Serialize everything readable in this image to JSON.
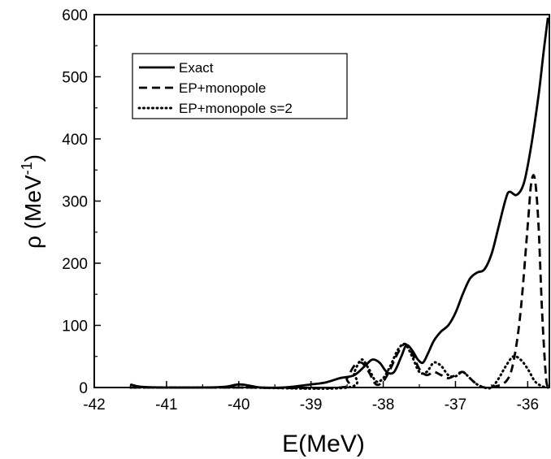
{
  "chart_data": {
    "type": "line",
    "title": "",
    "xlabel": "E(MeV)",
    "ylabel": "ρ (MeV",
    "ylabel_sup": "-1",
    "ylabel_close": ")",
    "xlim": [
      -42,
      -35.7
    ],
    "ylim": [
      0,
      600
    ],
    "x_ticks": [
      "-42",
      "-41",
      "-40",
      "-39",
      "-38",
      "-37",
      "-36"
    ],
    "y_ticks": [
      "0",
      "100",
      "200",
      "300",
      "400",
      "500",
      "600"
    ],
    "grid": false,
    "legend_position": "top-left",
    "series": [
      {
        "name": "Exact",
        "style": "solid",
        "points": [
          [
            -41.5,
            5
          ],
          [
            -41.35,
            1
          ],
          [
            -41.0,
            0
          ],
          [
            -40.5,
            0
          ],
          [
            -40.2,
            1
          ],
          [
            -40.0,
            5
          ],
          [
            -39.85,
            3
          ],
          [
            -39.7,
            0
          ],
          [
            -39.4,
            0
          ],
          [
            -39.2,
            2
          ],
          [
            -39.0,
            5
          ],
          [
            -38.8,
            8
          ],
          [
            -38.6,
            15
          ],
          [
            -38.4,
            20
          ],
          [
            -38.25,
            35
          ],
          [
            -38.15,
            45
          ],
          [
            -38.05,
            40
          ],
          [
            -37.95,
            25
          ],
          [
            -37.85,
            25
          ],
          [
            -37.75,
            50
          ],
          [
            -37.68,
            68
          ],
          [
            -37.6,
            60
          ],
          [
            -37.52,
            45
          ],
          [
            -37.45,
            40
          ],
          [
            -37.38,
            55
          ],
          [
            -37.3,
            75
          ],
          [
            -37.2,
            90
          ],
          [
            -37.1,
            100
          ],
          [
            -37.0,
            120
          ],
          [
            -36.9,
            150
          ],
          [
            -36.8,
            175
          ],
          [
            -36.7,
            185
          ],
          [
            -36.6,
            190
          ],
          [
            -36.5,
            215
          ],
          [
            -36.4,
            260
          ],
          [
            -36.3,
            305
          ],
          [
            -36.25,
            315
          ],
          [
            -36.15,
            310
          ],
          [
            -36.05,
            330
          ],
          [
            -35.95,
            390
          ],
          [
            -35.85,
            470
          ],
          [
            -35.78,
            540
          ],
          [
            -35.72,
            595
          ]
        ]
      },
      {
        "name": "EP+monopole",
        "style": "dashed",
        "points": [
          [
            -41.5,
            0
          ],
          [
            -40.0,
            0
          ],
          [
            -38.6,
            0
          ],
          [
            -38.5,
            15
          ],
          [
            -38.4,
            35
          ],
          [
            -38.3,
            40
          ],
          [
            -38.2,
            25
          ],
          [
            -38.1,
            5
          ],
          [
            -38.0,
            10
          ],
          [
            -37.9,
            30
          ],
          [
            -37.8,
            55
          ],
          [
            -37.7,
            70
          ],
          [
            -37.6,
            55
          ],
          [
            -37.5,
            30
          ],
          [
            -37.4,
            20
          ],
          [
            -37.3,
            25
          ],
          [
            -37.2,
            20
          ],
          [
            -37.1,
            15
          ],
          [
            -37.0,
            20
          ],
          [
            -36.9,
            25
          ],
          [
            -36.8,
            15
          ],
          [
            -36.7,
            5
          ],
          [
            -36.6,
            0
          ],
          [
            -36.5,
            0
          ],
          [
            -36.3,
            10
          ],
          [
            -36.2,
            40
          ],
          [
            -36.1,
            120
          ],
          [
            -36.0,
            260
          ],
          [
            -35.95,
            330
          ],
          [
            -35.9,
            335
          ],
          [
            -35.85,
            260
          ],
          [
            -35.8,
            120
          ],
          [
            -35.75,
            20
          ],
          [
            -35.72,
            0
          ]
        ]
      },
      {
        "name": "EP+monopole s=2",
        "style": "dotted",
        "points": [
          [
            -41.5,
            0
          ],
          [
            -40.0,
            0
          ],
          [
            -38.5,
            0
          ],
          [
            -38.4,
            25
          ],
          [
            -38.3,
            45
          ],
          [
            -38.2,
            30
          ],
          [
            -38.1,
            10
          ],
          [
            -38.0,
            15
          ],
          [
            -37.9,
            35
          ],
          [
            -37.8,
            60
          ],
          [
            -37.7,
            70
          ],
          [
            -37.6,
            50
          ],
          [
            -37.5,
            25
          ],
          [
            -37.4,
            25
          ],
          [
            -37.3,
            40
          ],
          [
            -37.2,
            35
          ],
          [
            -37.1,
            20
          ],
          [
            -37.0,
            18
          ],
          [
            -36.9,
            25
          ],
          [
            -36.8,
            15
          ],
          [
            -36.7,
            5
          ],
          [
            -36.6,
            0
          ],
          [
            -36.5,
            0
          ],
          [
            -36.4,
            15
          ],
          [
            -36.3,
            35
          ],
          [
            -36.2,
            50
          ],
          [
            -36.1,
            45
          ],
          [
            -36.0,
            30
          ],
          [
            -35.9,
            10
          ],
          [
            -35.8,
            2
          ],
          [
            -35.72,
            0
          ]
        ]
      }
    ]
  }
}
